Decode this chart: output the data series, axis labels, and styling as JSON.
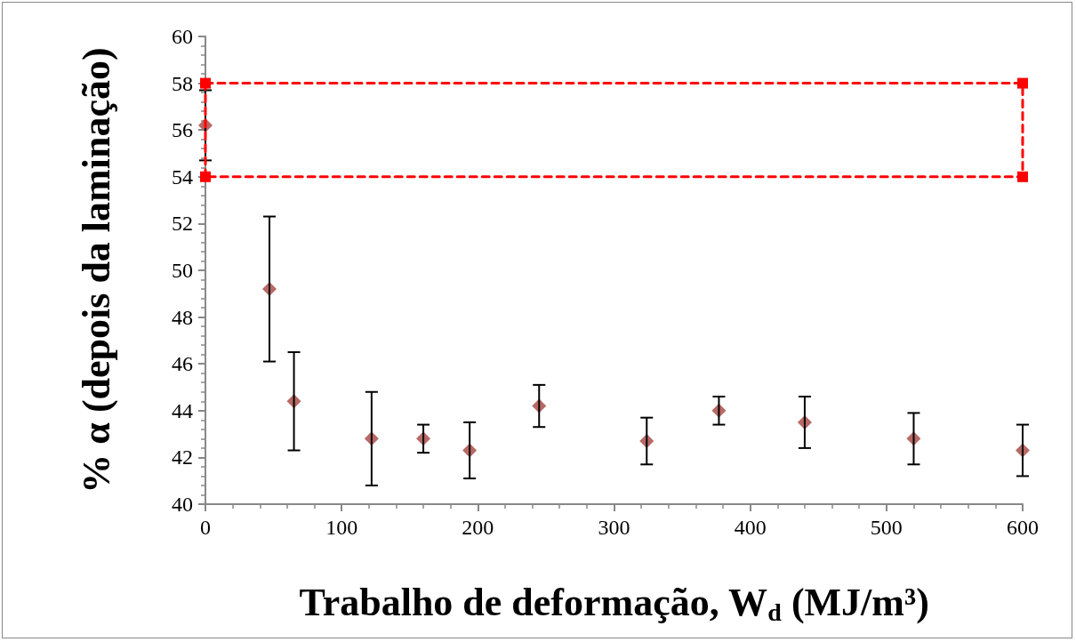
{
  "chart_data": {
    "type": "scatter",
    "xlabel": "Trabalho de deformação, W$_{d}$ (MJ/m³)",
    "ylabel": "% α (depois da laminação)",
    "series": [
      {
        "color": "#a5443e",
        "marker": "diamond",
        "x": [
          0,
          47,
          65,
          122,
          160,
          194,
          245,
          324,
          377,
          440,
          520,
          600
        ],
        "values": [
          56.2,
          49.2,
          44.4,
          42.8,
          42.8,
          42.3,
          44.2,
          42.7,
          44.0,
          43.5,
          42.8,
          42.3
        ],
        "errors": [
          1.5,
          3.1,
          2.1,
          2.0,
          0.6,
          1.2,
          0.9,
          1.0,
          0.6,
          1.1,
          1.1,
          1.1
        ]
      },
      {
        "type": "line",
        "color": "#ff0000",
        "marker": "square",
        "line_style": "dashed",
        "x": [
          0,
          600,
          600,
          0
        ],
        "values": [
          58,
          58,
          54,
          54
        ]
      },
      {
        "type": "line",
        "color": "#ff0000",
        "marker": "none",
        "line_style": "dashed",
        "x": [
          0,
          0
        ],
        "values": [
          54,
          58
        ]
      }
    ],
    "xlim": [
      0,
      600
    ],
    "xticks": [
      0,
      100,
      200,
      300,
      400,
      500,
      600
    ],
    "ylim": [
      40,
      60
    ],
    "yticks": [
      40,
      42,
      44,
      46,
      48,
      50,
      52,
      54,
      56,
      58,
      60
    ],
    "grid": false
  }
}
